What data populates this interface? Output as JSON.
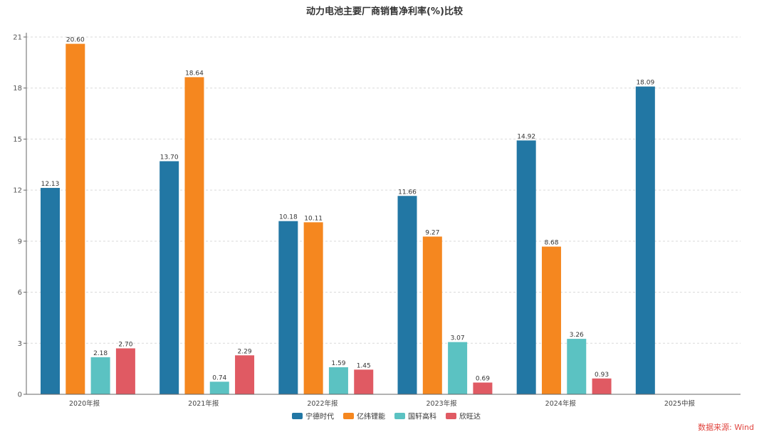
{
  "chart_data": {
    "type": "bar",
    "title": "动力电池主要厂商销售净利率(%)比较",
    "categories": [
      "2020年报",
      "2021年报",
      "2022年报",
      "2023年报",
      "2024年报",
      "2025中报"
    ],
    "ylim": [
      0,
      21
    ],
    "yticks": [
      0,
      3,
      6,
      9,
      12,
      15,
      18,
      21
    ],
    "grid": true,
    "legend_position": "bottom-center",
    "series": [
      {
        "name": "宁德时代",
        "color": "#2277a4",
        "values": [
          12.13,
          13.7,
          10.18,
          11.66,
          14.92,
          18.09
        ],
        "labels": [
          "12.13",
          "13.70",
          "10.18",
          "11.66",
          "14.92",
          "18.09"
        ]
      },
      {
        "name": "亿纬锂能",
        "color": "#f5871f",
        "values": [
          20.6,
          18.64,
          10.11,
          9.27,
          8.68,
          null
        ],
        "labels": [
          "20.60",
          "18.64",
          "10.11",
          "9.27",
          "8.68",
          null
        ]
      },
      {
        "name": "国轩高科",
        "color": "#5bc2c2",
        "values": [
          2.18,
          0.74,
          1.59,
          3.07,
          3.26,
          null
        ],
        "labels": [
          "2.18",
          "0.74",
          "1.59",
          "3.07",
          "3.26",
          null
        ]
      },
      {
        "name": "欣旺达",
        "color": "#e05a63",
        "values": [
          2.7,
          2.29,
          1.45,
          0.69,
          0.93,
          null
        ],
        "labels": [
          "2.70",
          "2.29",
          "1.45",
          "0.69",
          "0.93",
          null
        ]
      }
    ]
  },
  "source": {
    "text": "数据来源: Wind",
    "color": "#e0443e"
  }
}
